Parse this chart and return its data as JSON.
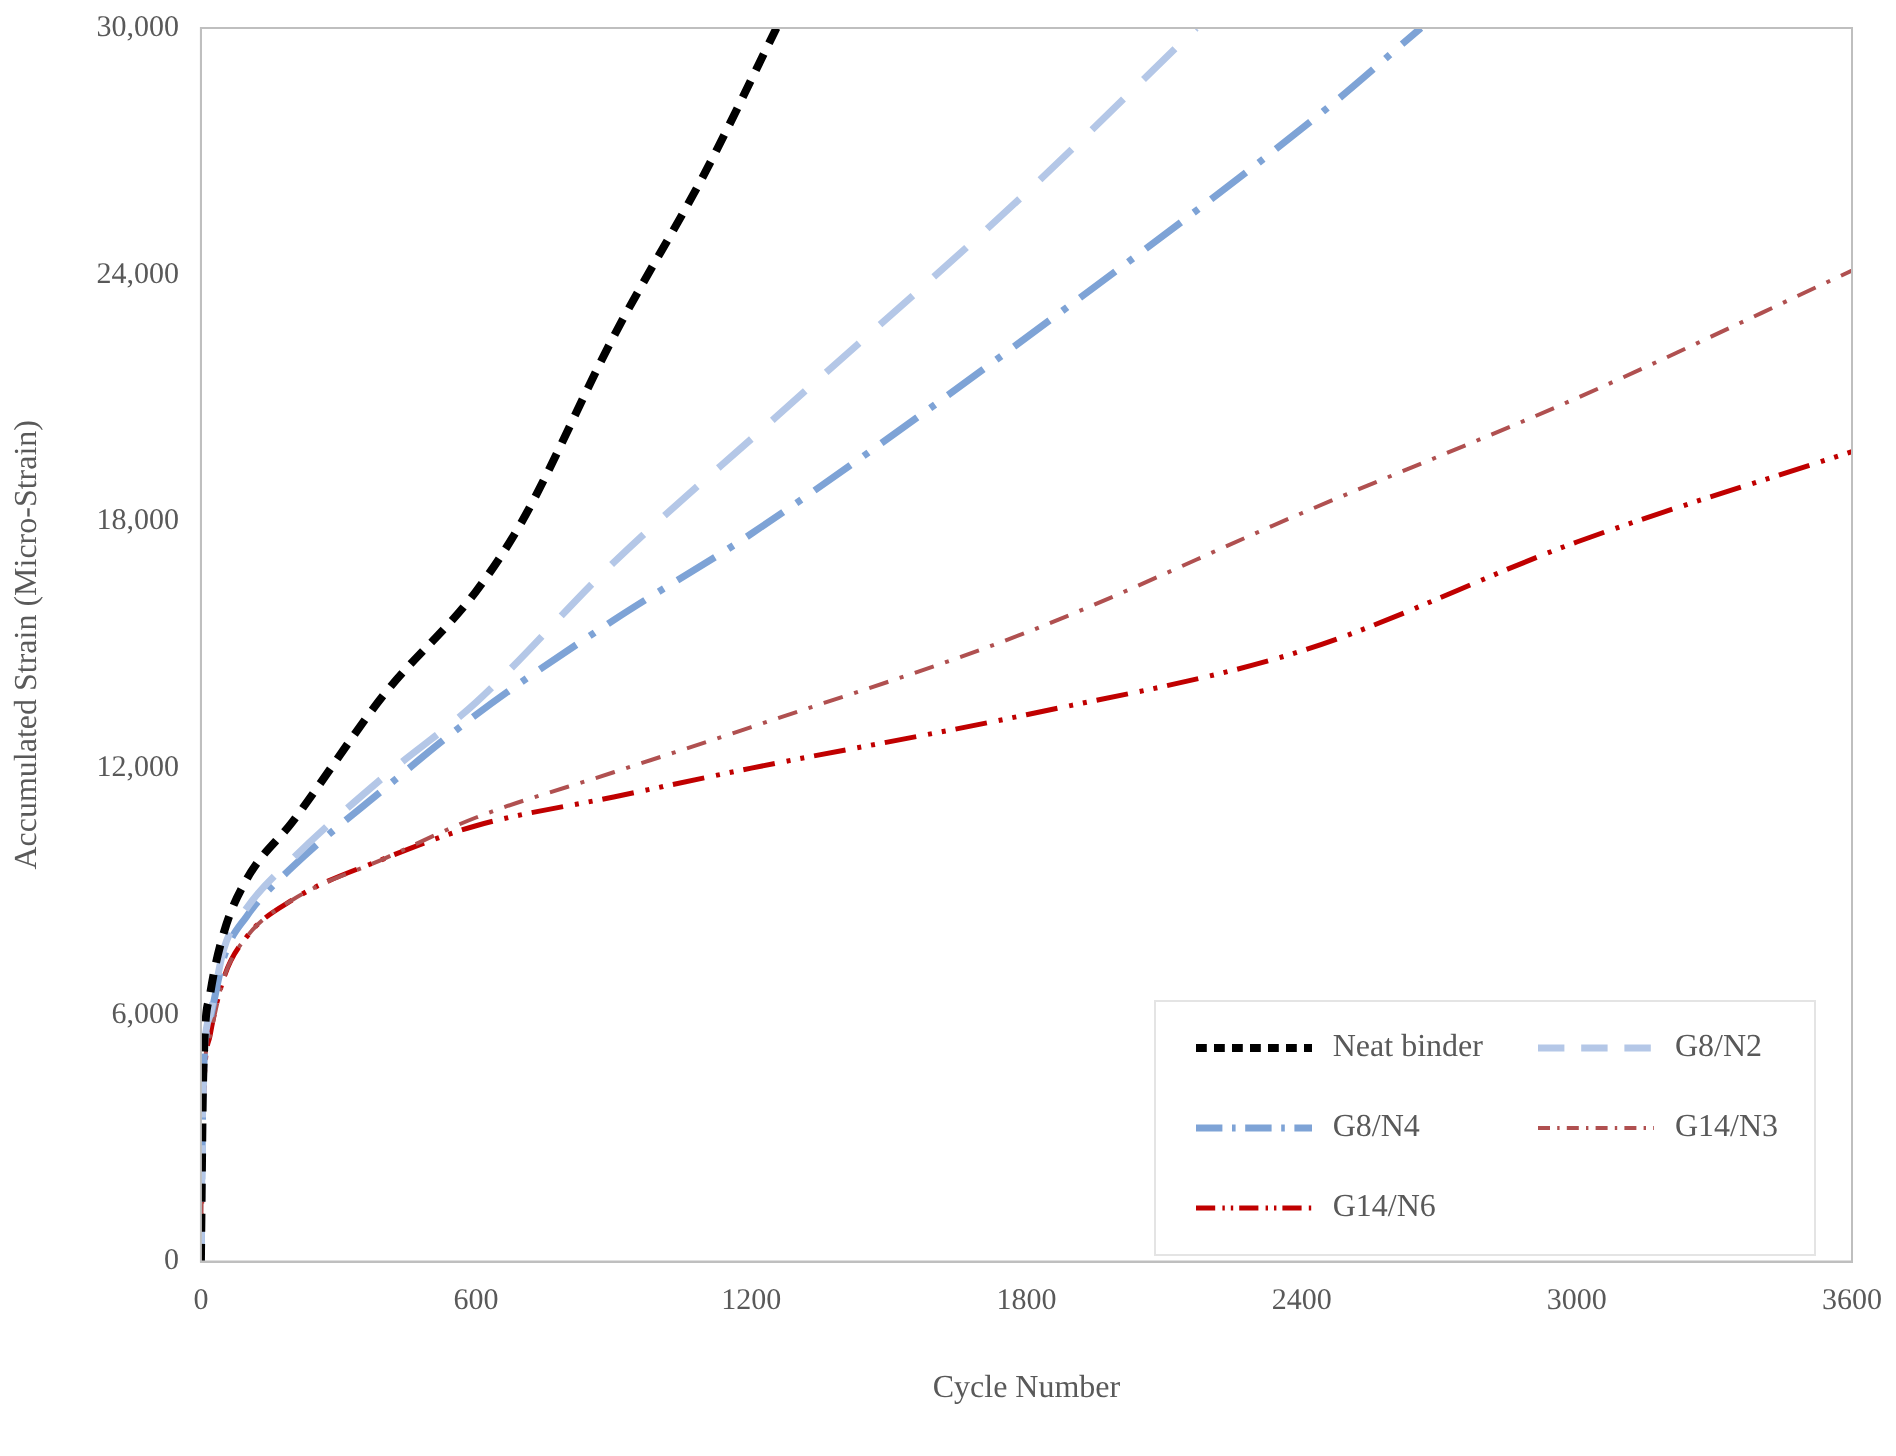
{
  "chart_data": {
    "type": "line",
    "xlabel": "Cycle Number",
    "ylabel": "Accumulated Strain (Micro-Strain)",
    "xlim": [
      0,
      3600
    ],
    "xticks": [
      0,
      600,
      1200,
      1800,
      2400,
      3000,
      3600
    ],
    "ylim": [
      0,
      30000
    ],
    "yticks": [
      {
        "value": 0,
        "label": "0"
      },
      {
        "value": 6000,
        "label": "6,000"
      },
      {
        "value": 12000,
        "label": "12,000"
      },
      {
        "value": 18000,
        "label": "18,000"
      },
      {
        "value": 24000,
        "label": "24,000"
      },
      {
        "value": 30000,
        "label": "30,000"
      }
    ],
    "grid": false,
    "legend": "bottom right",
    "marker": "none",
    "series": [
      {
        "name": "Neat binder",
        "color": "#000000",
        "line_style": "dashed",
        "x": [
          0,
          5,
          20,
          50,
          100,
          200,
          400,
          600,
          700,
          900,
          1100,
          1255
        ],
        "values": [
          0,
          4500,
          6500,
          8000,
          9300,
          10700,
          13800,
          16300,
          18000,
          22500,
          26500,
          30000
        ]
      },
      {
        "name": "G8/N2",
        "color": "#b4c7e7",
        "line_style": "dashed",
        "x": [
          0,
          5,
          20,
          50,
          100,
          200,
          400,
          600,
          900,
          1250,
          1800,
          2170
        ],
        "values": [
          0,
          4500,
          6000,
          7600,
          8600,
          9800,
          11800,
          13600,
          17000,
          20500,
          26000,
          30000
        ]
      },
      {
        "name": "G8/N4",
        "color": "#7ea3d6",
        "line_style": "dashed",
        "x": [
          0,
          5,
          20,
          50,
          100,
          200,
          400,
          600,
          900,
          1200,
          1900,
          2450,
          2660
        ],
        "values": [
          0,
          4400,
          5900,
          7400,
          8400,
          9600,
          11500,
          13300,
          15600,
          17700,
          23300,
          28000,
          30000
        ]
      },
      {
        "name": "G14/N3",
        "color": "#b05050",
        "line_style": "dashed",
        "x": [
          0,
          5,
          20,
          50,
          100,
          200,
          400,
          600,
          900,
          1200,
          1800,
          2400,
          3000,
          3600
        ],
        "values": [
          0,
          4000,
          5500,
          6900,
          7900,
          8800,
          9800,
          10800,
          11900,
          13000,
          15300,
          18200,
          21000,
          24100
        ]
      },
      {
        "name": "G14/N6",
        "color": "#c00000",
        "line_style": "dashed",
        "x": [
          0,
          5,
          20,
          50,
          100,
          200,
          400,
          600,
          900,
          1200,
          1800,
          2400,
          3000,
          3600
        ],
        "values": [
          0,
          3800,
          5500,
          6900,
          7900,
          8800,
          9800,
          10600,
          11300,
          12000,
          13300,
          14850,
          17500,
          19700
        ]
      }
    ]
  }
}
